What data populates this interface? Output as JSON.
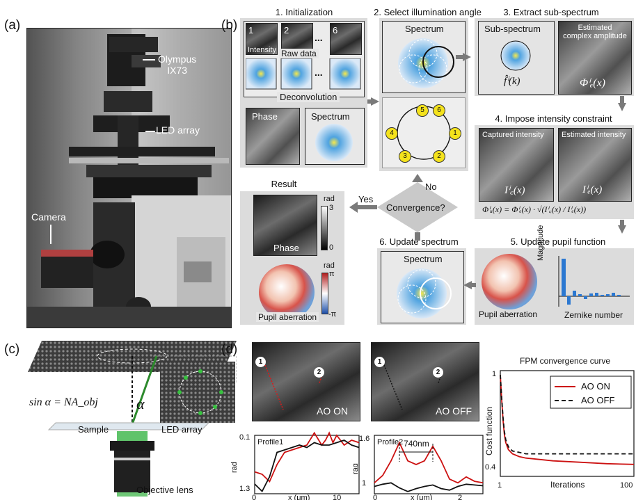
{
  "panel_labels": {
    "a": "(a)",
    "b": "(b)",
    "c": "(c)",
    "d": "(d)"
  },
  "panel_a": {
    "microscope_label_1": "Olympus",
    "microscope_label_2": "IX73",
    "led_label": "LED array",
    "camera_label": "Camera"
  },
  "panel_b": {
    "step1": "1. Initialization",
    "step2": "2. Select illumination angle",
    "step3": "3. Extract sub-spectrum",
    "step4": "4. Impose intensity constraint",
    "step5": "5. Update pupil function",
    "step6": "6. Update spectrum",
    "raw_tiles": [
      "1",
      "2",
      "6"
    ],
    "ellipsis": "...",
    "intensity": "Intensity",
    "raw_data": "Raw data",
    "deconvolution": "Deconvolution",
    "phase": "Phase",
    "spectrum": "Spectrum",
    "sub_spectrum": "Sub-spectrum",
    "estimated_complex_amplitude_1": "Estimated",
    "estimated_complex_amplitude_2": "complex amplitude",
    "f_label": "f̂ⁱ(k)",
    "phi_e": "Φⁱₑ(x)",
    "captured_intensity": "Captured intensity",
    "estimated_intensity": "Estimated intensity",
    "i_c": "Iⁱ꜀(x)",
    "i_e": "Iⁱₑ(x)",
    "equation": "Φⁱᵤ(x) = Φⁱₑ(x) · √(Iⁱ꜀(x) / Iⁱₑ(x))",
    "ring_nodes": [
      "5",
      "6",
      "1",
      "2",
      "3",
      "4"
    ],
    "result": "Result",
    "convergence": "Convergence?",
    "yes": "Yes",
    "no": "No",
    "rad": "rad",
    "phase_max": "3",
    "phase_min": "0",
    "pi_max": "π",
    "pi_min": "-π",
    "pupil_aberration": "Pupil aberration",
    "magnitude": "Magnitude",
    "zernike_number": "Zernike number"
  },
  "panel_c": {
    "equation": "sin α = NA_obj",
    "alpha": "α",
    "sample": "Sample",
    "led_array": "LED array",
    "objective_lens": "Objective lens"
  },
  "panel_d": {
    "ao_on": "AO ON",
    "ao_off": "AO OFF",
    "markers": [
      "1",
      "2"
    ],
    "profile1": "Profile1",
    "profile2": "Profile2",
    "dist_label": "740nm",
    "ylabel": "rad",
    "xlabel_prefix": "x (μm)",
    "convergence_title": "FPM convergence curve",
    "conv_ylabel": "Cost function",
    "conv_xlabel": "Iterations"
  },
  "chart_data": [
    {
      "type": "line",
      "title": "Profile1",
      "ylabel": "rad",
      "xlabel": "x (μm)",
      "xlim": [
        0,
        14
      ],
      "ylim": [
        0.1,
        1.3
      ],
      "yticks": [
        "0.1",
        "1.3"
      ],
      "xticks": [
        "0",
        "10"
      ],
      "series": [
        {
          "color": "#cc1111",
          "x": [
            0,
            1,
            2,
            3,
            4,
            5,
            6,
            7,
            8,
            9,
            9.5,
            10,
            10.5,
            11,
            12,
            13,
            14
          ],
          "y": [
            0.55,
            0.5,
            0.35,
            0.7,
            0.95,
            1.0,
            1.05,
            1.1,
            1.35,
            1.1,
            1.2,
            1.35,
            1.15,
            1.3,
            1.1,
            1.2,
            1.15
          ]
        },
        {
          "color": "#111111",
          "x": [
            0,
            1,
            2,
            3,
            4,
            5,
            6,
            7,
            8,
            9,
            10,
            11,
            12,
            13,
            14
          ],
          "y": [
            0.3,
            0.15,
            0.45,
            0.95,
            1.0,
            1.05,
            1.1,
            1.05,
            1.15,
            1.1,
            1.1,
            1.15,
            1.2,
            1.1,
            1.05
          ]
        }
      ]
    },
    {
      "type": "line",
      "title": "Profile2",
      "ylabel": "rad",
      "xlabel": "x (μm)",
      "xlim": [
        0,
        2.6
      ],
      "ylim": [
        0.85,
        1.65
      ],
      "yticks": [
        "1.6",
        "1"
      ],
      "xticks": [
        "0",
        "2"
      ],
      "annotation": "740nm",
      "series": [
        {
          "color": "#cc1111",
          "x": [
            0,
            0.2,
            0.4,
            0.6,
            0.8,
            1.0,
            1.2,
            1.4,
            1.6,
            1.8,
            2.0,
            2.2,
            2.4,
            2.6
          ],
          "y": [
            1.0,
            1.1,
            1.3,
            1.55,
            1.3,
            1.25,
            1.3,
            1.5,
            1.3,
            1.05,
            1.0,
            1.08,
            1.02,
            1.0
          ]
        },
        {
          "color": "#111111",
          "x": [
            0,
            0.2,
            0.4,
            0.6,
            0.8,
            1.0,
            1.2,
            1.4,
            1.6,
            1.8,
            2.0,
            2.2,
            2.4,
            2.6
          ],
          "y": [
            0.95,
            0.98,
            1.0,
            0.93,
            0.88,
            0.92,
            0.95,
            0.97,
            0.92,
            0.9,
            0.95,
            0.98,
            0.97,
            0.96
          ]
        }
      ]
    },
    {
      "type": "line",
      "title": "FPM convergence curve",
      "xlabel": "Iterations",
      "ylabel": "Cost function",
      "xlim": [
        1,
        100
      ],
      "ylim": [
        0.3,
        1.05
      ],
      "xticks": [
        "1",
        "100"
      ],
      "yticks": [
        "1",
        "0.4"
      ],
      "legend": "top-right",
      "series": [
        {
          "name": "AO ON",
          "color": "#cc1111",
          "dash": false,
          "x": [
            1,
            2,
            3,
            4,
            5,
            7,
            10,
            15,
            20,
            30,
            40,
            60,
            80,
            100
          ],
          "y": [
            1.02,
            0.85,
            0.7,
            0.6,
            0.54,
            0.49,
            0.46,
            0.44,
            0.43,
            0.42,
            0.41,
            0.4,
            0.39,
            0.385
          ]
        },
        {
          "name": "AO OFF",
          "color": "#111111",
          "dash": true,
          "x": [
            1,
            2,
            3,
            4,
            5,
            7,
            10,
            15,
            20,
            30,
            40,
            60,
            80,
            100
          ],
          "y": [
            1.02,
            0.86,
            0.72,
            0.62,
            0.56,
            0.51,
            0.48,
            0.47,
            0.46,
            0.46,
            0.46,
            0.46,
            0.46,
            0.46
          ]
        }
      ]
    }
  ]
}
